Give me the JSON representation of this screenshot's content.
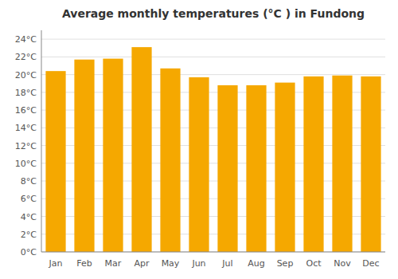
{
  "chart_data": {
    "type": "bar",
    "title": "Average monthly temperatures (°C ) in Fundong",
    "categories": [
      "Jan",
      "Feb",
      "Mar",
      "Apr",
      "May",
      "Jun",
      "Jul",
      "Aug",
      "Sep",
      "Oct",
      "Nov",
      "Dec"
    ],
    "values": [
      20.4,
      21.7,
      21.8,
      23.1,
      20.7,
      19.7,
      18.8,
      18.8,
      19.1,
      19.8,
      19.9,
      19.8
    ],
    "color": "#F5A800",
    "ylim": [
      0,
      25
    ],
    "yticks": [
      {
        "value": 0,
        "label": "0°C"
      },
      {
        "value": 2,
        "label": "2°C"
      },
      {
        "value": 4,
        "label": "4°C"
      },
      {
        "value": 6,
        "label": "6°C"
      },
      {
        "value": 8,
        "label": "8°C"
      },
      {
        "value": 10,
        "label": "10°C"
      },
      {
        "value": 12,
        "label": "12°C"
      },
      {
        "value": 14,
        "label": "14°C"
      },
      {
        "value": 16,
        "label": "16°C"
      },
      {
        "value": 18,
        "label": "18°C"
      },
      {
        "value": 20,
        "label": "20°C"
      },
      {
        "value": 22,
        "label": "22°C"
      },
      {
        "value": 24,
        "label": "24°C"
      }
    ],
    "grid": true
  }
}
